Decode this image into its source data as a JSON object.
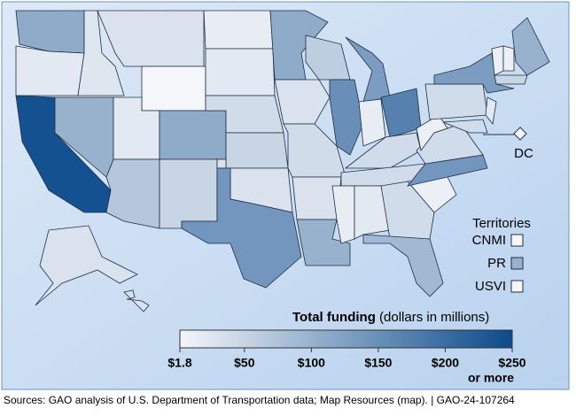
{
  "chart_data": {
    "type": "choropleth",
    "regions": [
      110,
      20,
      240,
      100,
      25,
      30,
      1.8,
      20,
      110,
      70,
      50,
      15,
      20,
      40,
      50,
      30,
      140,
      110,
      30,
      40,
      30,
      100,
      60,
      150,
      130,
      15,
      170,
      40,
      40,
      15,
      20,
      40,
      90,
      10,
      140,
      40,
      10,
      40,
      130,
      20,
      40,
      10,
      10,
      100,
      50,
      30,
      30
    ],
    "dc": {
      "label": "DC",
      "value": 1.8
    },
    "territories": {
      "title": "Territories",
      "items": [
        {
          "name": "CNMI",
          "value": 1.8
        },
        {
          "name": "PR",
          "value": 100
        },
        {
          "name": "USVI",
          "value": 1.8
        }
      ]
    },
    "legend": {
      "title": "Total funding",
      "subtitle": "(dollars in millions)",
      "colors": [
        "#f4f6fa",
        "#0b4a8c"
      ],
      "ticks": [
        {
          "value": 1.8,
          "label": "$1.8"
        },
        {
          "value": 50,
          "label": "$50"
        },
        {
          "value": 100,
          "label": "$100"
        },
        {
          "value": 150,
          "label": "$150"
        },
        {
          "value": 200,
          "label": "$200"
        },
        {
          "value": 250,
          "label": "$250"
        }
      ],
      "max_note": "or more"
    },
    "source": "Sources: GAO analysis of U.S. Department of Transportation data; Map Resources (map).  |  GAO-24-107264"
  }
}
